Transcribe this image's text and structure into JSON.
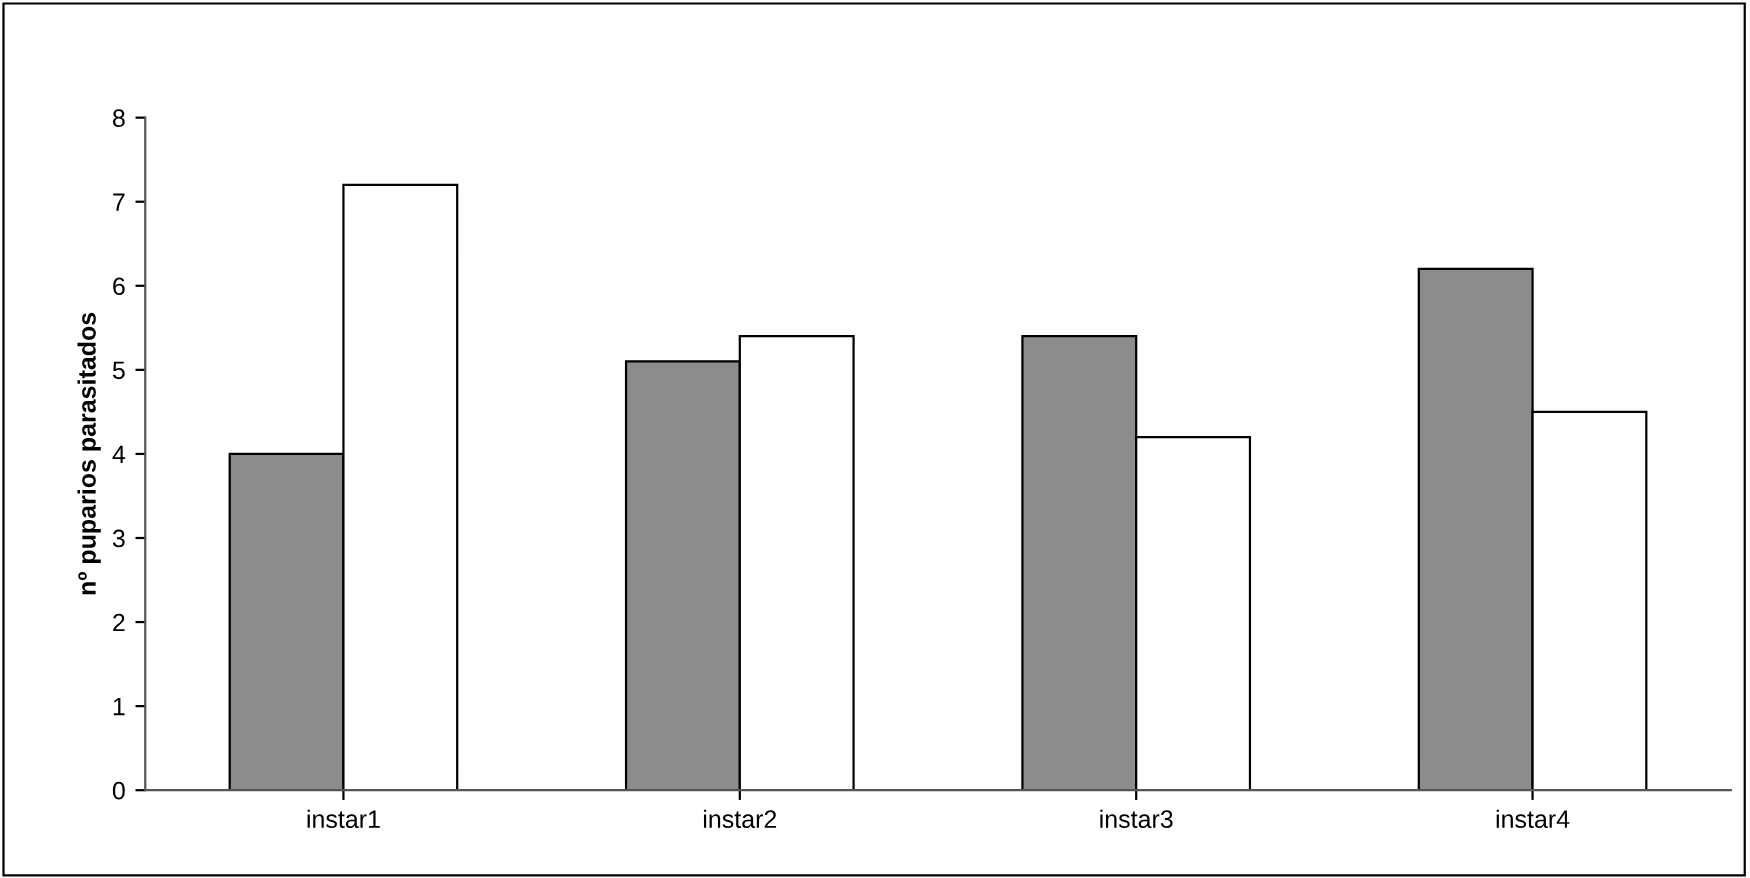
{
  "chart_data": {
    "type": "bar",
    "ylabel": "nº puparios parasitados",
    "categories": [
      "instar1",
      "instar2",
      "instar3",
      "instar4"
    ],
    "series": [
      {
        "color": "#8c8c8c",
        "values": [
          4.0,
          5.1,
          5.4,
          6.2
        ]
      },
      {
        "color": "#ffffff",
        "values": [
          7.2,
          5.4,
          4.2,
          4.5
        ]
      }
    ],
    "ylim": [
      0,
      8
    ],
    "yticks": [
      0,
      1,
      2,
      3,
      4,
      5,
      6,
      7,
      8
    ],
    "grid": false,
    "legend": false
  }
}
